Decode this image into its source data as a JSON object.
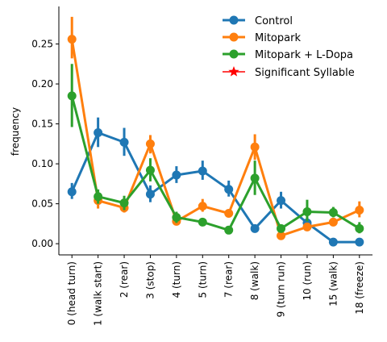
{
  "chart_data": {
    "type": "line",
    "title": "",
    "xlabel": "",
    "ylabel": "frequency",
    "ylim": [
      -0.014,
      0.297
    ],
    "yticks": [
      "0.00",
      "0.05",
      "0.10",
      "0.15",
      "0.20",
      "0.25"
    ],
    "grid": false,
    "legend_position": "top-right",
    "categories": [
      "0 (head turn)",
      "1 (walk start)",
      "2 (rear)",
      "3 (stop)",
      "4 (turn)",
      "5 (turn)",
      "7 (rear)",
      "8 (walk)",
      "9 (turn run)",
      "10 (run)",
      "15 (walk)",
      "18 (freeze)"
    ],
    "series": [
      {
        "name": "Control",
        "color": "#1f77b4",
        "values": [
          0.065,
          0.139,
          0.127,
          0.062,
          0.086,
          0.091,
          0.068,
          0.019,
          0.054,
          0.026,
          0.002,
          0.002
        ],
        "err_low": [
          0.056,
          0.121,
          0.11,
          0.052,
          0.076,
          0.08,
          0.059,
          0.017,
          0.044,
          0.02,
          0.001,
          0.001
        ],
        "err_high": [
          0.076,
          0.158,
          0.145,
          0.073,
          0.097,
          0.104,
          0.079,
          0.022,
          0.065,
          0.033,
          0.004,
          0.004
        ]
      },
      {
        "name": "Mitopark",
        "color": "#ff7f0e",
        "values": [
          0.256,
          0.054,
          0.045,
          0.125,
          0.028,
          0.047,
          0.038,
          0.121,
          0.01,
          0.021,
          0.027,
          0.042
        ],
        "err_low": [
          0.232,
          0.044,
          0.039,
          0.113,
          0.023,
          0.04,
          0.034,
          0.105,
          0.006,
          0.016,
          0.023,
          0.033
        ],
        "err_high": [
          0.284,
          0.064,
          0.052,
          0.136,
          0.034,
          0.056,
          0.042,
          0.137,
          0.014,
          0.026,
          0.032,
          0.053
        ]
      },
      {
        "name": "Mitopark + L-Dopa",
        "color": "#2ca02c",
        "values": [
          0.185,
          0.059,
          0.051,
          0.092,
          0.033,
          0.027,
          0.017,
          0.082,
          0.019,
          0.04,
          0.039,
          0.019
        ],
        "err_low": [
          0.146,
          0.05,
          0.042,
          0.078,
          0.026,
          0.023,
          0.014,
          0.061,
          0.014,
          0.028,
          0.033,
          0.013
        ],
        "err_high": [
          0.225,
          0.068,
          0.06,
          0.107,
          0.04,
          0.031,
          0.02,
          0.104,
          0.024,
          0.055,
          0.046,
          0.027
        ]
      }
    ],
    "legend_extra": {
      "name": "Significant Syllable",
      "color": "#ff0000",
      "marker": "star"
    }
  }
}
